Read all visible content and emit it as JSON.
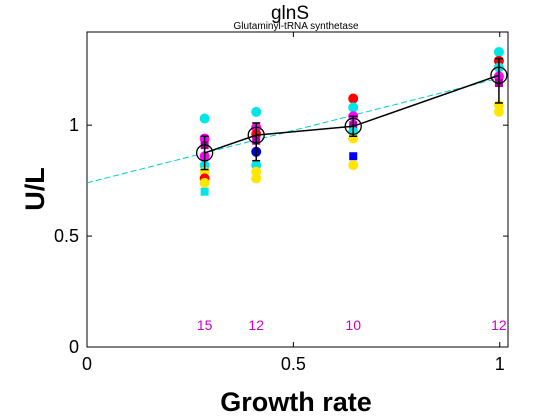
{
  "chart_data": {
    "type": "scatter",
    "title": "glnS",
    "subtitle": "Glutaminyl-tRNA synthetase",
    "xlabel": "Growth rate",
    "ylabel": "U/L",
    "xlim": [
      0,
      1.02
    ],
    "ylim": [
      0,
      1.42
    ],
    "x_ticks": [
      0,
      0.5,
      1
    ],
    "x_tick_labels": [
      "0",
      "0.5",
      "1"
    ],
    "y_ticks": [
      0,
      0.5,
      1
    ],
    "y_tick_labels": [
      "0",
      "0.5",
      "1"
    ],
    "grid": false,
    "colors": {
      "count_label": "#cc00cc",
      "fit_line": "#00cccc",
      "mean_line": "#000000"
    },
    "replicates": [
      {
        "x": 0.285,
        "y": 1.03,
        "color": "#00e5e5",
        "marker": "circle"
      },
      {
        "x": 0.285,
        "y": 0.94,
        "color": "#ff00ff",
        "marker": "circle"
      },
      {
        "x": 0.285,
        "y": 0.91,
        "color": "#aa00aa",
        "marker": "square"
      },
      {
        "x": 0.285,
        "y": 0.86,
        "color": "#ff00ff",
        "marker": "circle"
      },
      {
        "x": 0.285,
        "y": 0.82,
        "color": "#00e5e5",
        "marker": "circle"
      },
      {
        "x": 0.285,
        "y": 0.79,
        "color": "#ffe600",
        "marker": "circle"
      },
      {
        "x": 0.285,
        "y": 0.76,
        "color": "#ff0000",
        "marker": "circle"
      },
      {
        "x": 0.285,
        "y": 0.74,
        "color": "#ffe600",
        "marker": "circle"
      },
      {
        "x": 0.285,
        "y": 0.7,
        "color": "#00e5e5",
        "marker": "square"
      },
      {
        "x": 0.41,
        "y": 1.06,
        "color": "#00e5e5",
        "marker": "circle"
      },
      {
        "x": 0.41,
        "y": 0.99,
        "color": "#ff00ff",
        "marker": "circle"
      },
      {
        "x": 0.41,
        "y": 0.96,
        "color": "#ff0000",
        "marker": "circle"
      },
      {
        "x": 0.41,
        "y": 0.93,
        "color": "#aa00aa",
        "marker": "square"
      },
      {
        "x": 0.41,
        "y": 0.88,
        "color": "#0000cc",
        "marker": "circle"
      },
      {
        "x": 0.41,
        "y": 0.82,
        "color": "#00e5e5",
        "marker": "circle"
      },
      {
        "x": 0.41,
        "y": 0.79,
        "color": "#ffe600",
        "marker": "circle"
      },
      {
        "x": 0.41,
        "y": 0.76,
        "color": "#ffe600",
        "marker": "circle"
      },
      {
        "x": 0.645,
        "y": 1.12,
        "color": "#ff0000",
        "marker": "circle"
      },
      {
        "x": 0.645,
        "y": 1.08,
        "color": "#00e5e5",
        "marker": "circle"
      },
      {
        "x": 0.645,
        "y": 1.04,
        "color": "#ff00ff",
        "marker": "circle"
      },
      {
        "x": 0.645,
        "y": 1.0,
        "color": "#aa00aa",
        "marker": "square"
      },
      {
        "x": 0.645,
        "y": 0.97,
        "color": "#00e5e5",
        "marker": "circle"
      },
      {
        "x": 0.645,
        "y": 0.94,
        "color": "#ffe600",
        "marker": "circle"
      },
      {
        "x": 0.645,
        "y": 0.86,
        "color": "#0000ff",
        "marker": "square"
      },
      {
        "x": 0.645,
        "y": 0.82,
        "color": "#ffe600",
        "marker": "circle"
      },
      {
        "x": 0.998,
        "y": 1.33,
        "color": "#00e5e5",
        "marker": "circle"
      },
      {
        "x": 0.998,
        "y": 1.29,
        "color": "#ff0000",
        "marker": "circle"
      },
      {
        "x": 0.998,
        "y": 1.26,
        "color": "#00e5e5",
        "marker": "circle"
      },
      {
        "x": 0.998,
        "y": 1.22,
        "color": "#ff00ff",
        "marker": "circle"
      },
      {
        "x": 0.998,
        "y": 1.19,
        "color": "#aa00aa",
        "marker": "square"
      },
      {
        "x": 0.998,
        "y": 1.09,
        "color": "#ffe600",
        "marker": "circle"
      },
      {
        "x": 0.998,
        "y": 1.06,
        "color": "#ffe600",
        "marker": "circle"
      }
    ],
    "means": [
      {
        "x": 0.285,
        "y": 0.875,
        "err_low": 0.8,
        "err_high": 0.95,
        "n": "15"
      },
      {
        "x": 0.41,
        "y": 0.955,
        "err_low": 0.84,
        "err_high": 1.01,
        "n": "12"
      },
      {
        "x": 0.645,
        "y": 0.995,
        "err_low": 0.95,
        "err_high": 1.04,
        "n": "10"
      },
      {
        "x": 0.998,
        "y": 1.225,
        "err_low": 1.1,
        "err_high": 1.3,
        "n": "12"
      }
    ],
    "count_label_y": 0.1,
    "fit_line": {
      "x": [
        0,
        1.02
      ],
      "y": [
        0.74,
        1.222
      ]
    }
  }
}
